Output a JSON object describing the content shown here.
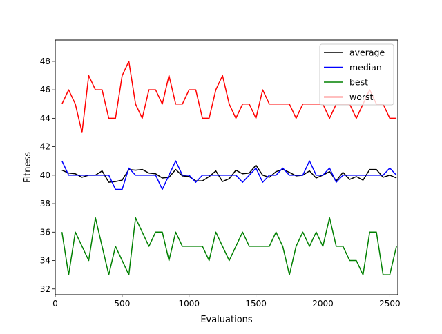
{
  "chart_data": {
    "type": "line",
    "title": "",
    "xlabel": "Evaluations",
    "ylabel": "Fitness",
    "xlim": [
      0,
      2560
    ],
    "ylim": [
      31.6,
      49.5
    ],
    "xticks": [
      0,
      500,
      1000,
      1500,
      2000,
      2500
    ],
    "yticks": [
      32,
      34,
      36,
      38,
      40,
      42,
      44,
      46,
      48
    ],
    "grid": false,
    "legend_position": "top-right",
    "x": [
      50,
      100,
      150,
      200,
      250,
      300,
      350,
      400,
      450,
      500,
      550,
      600,
      650,
      700,
      750,
      800,
      850,
      900,
      950,
      1000,
      1050,
      1100,
      1150,
      1200,
      1250,
      1300,
      1350,
      1400,
      1450,
      1500,
      1550,
      1600,
      1650,
      1700,
      1750,
      1800,
      1850,
      1900,
      1950,
      2000,
      2050,
      2100,
      2150,
      2200,
      2250,
      2300,
      2350,
      2400,
      2450,
      2500,
      2550
    ],
    "series": [
      {
        "name": "average",
        "color": "#000000",
        "values": [
          40.35,
          40.15,
          40.1,
          39.85,
          40.0,
          40.0,
          40.3,
          39.5,
          39.55,
          39.65,
          40.4,
          40.35,
          40.4,
          40.15,
          40.1,
          39.8,
          39.85,
          40.4,
          39.95,
          39.9,
          39.6,
          39.6,
          39.9,
          40.3,
          39.55,
          39.75,
          40.35,
          40.1,
          40.15,
          40.7,
          40.0,
          39.85,
          40.25,
          40.4,
          40.2,
          39.95,
          40.0,
          40.3,
          39.8,
          40.0,
          40.25,
          39.6,
          40.2,
          39.7,
          39.9,
          39.65,
          40.4,
          40.4,
          39.85,
          40.0,
          39.8
        ]
      },
      {
        "name": "median",
        "color": "#0000ff",
        "values": [
          41,
          40,
          40,
          40,
          40,
          40,
          40,
          40,
          39,
          39,
          40.5,
          40,
          40,
          40,
          40,
          39,
          40,
          41,
          40,
          40,
          39.5,
          40,
          40,
          40,
          40,
          40,
          40,
          39.5,
          40,
          40.5,
          39.5,
          40,
          40,
          40.5,
          40,
          40,
          40,
          41,
          40,
          40,
          40.5,
          39.5,
          40,
          40,
          40,
          40,
          40,
          40,
          40,
          40.5,
          40
        ]
      },
      {
        "name": "best",
        "color": "#008000",
        "values": [
          36,
          33,
          36,
          35,
          34,
          37,
          35,
          33,
          35,
          34,
          33,
          37,
          36,
          35,
          36,
          36,
          34,
          36,
          35,
          35,
          35,
          35,
          34,
          36,
          35,
          34,
          35,
          36,
          35,
          35,
          35,
          35,
          36,
          35,
          33,
          35,
          36,
          35,
          36,
          35,
          37,
          35,
          35,
          34,
          34,
          33,
          36,
          36,
          33,
          33,
          35
        ]
      },
      {
        "name": "worst",
        "color": "#ff0000",
        "values": [
          45,
          46,
          45,
          43,
          47,
          46,
          46,
          44,
          44,
          47,
          48,
          45,
          44,
          46,
          46,
          45,
          47,
          45,
          45,
          46,
          46,
          44,
          44,
          46,
          47,
          45,
          44,
          45,
          45,
          44,
          46,
          45,
          45,
          45,
          45,
          44,
          45,
          45,
          45,
          45,
          44,
          45,
          45,
          45,
          44,
          45,
          46,
          45,
          45,
          44,
          44
        ]
      }
    ]
  }
}
